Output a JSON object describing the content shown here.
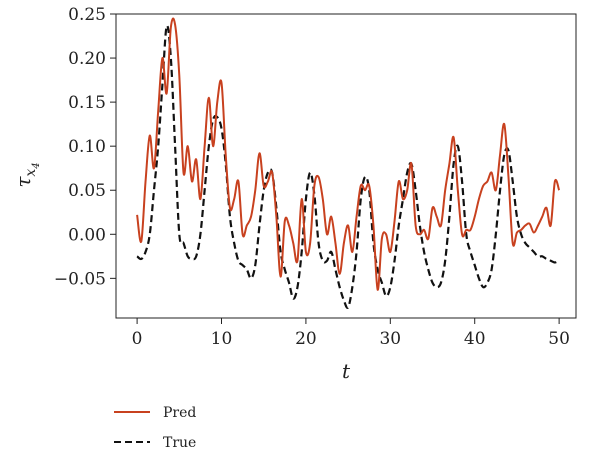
{
  "chart_data": {
    "type": "line",
    "xlabel": "t",
    "ylabel": "τ",
    "ylabel_subscript": "x",
    "ylabel_subsubscript": "4",
    "xlim": [
      -2.5,
      52
    ],
    "ylim": [
      -0.095,
      0.25
    ],
    "xticks": [
      0,
      10,
      20,
      30,
      40,
      50
    ],
    "yticks": [
      -0.05,
      0.0,
      0.05,
      0.1,
      0.15,
      0.2,
      0.25
    ],
    "ytick_labels": [
      "−0.05",
      "0.00",
      "0.05",
      "0.10",
      "0.15",
      "0.20",
      "0.25"
    ],
    "legend_position": "bottom-left, below plot",
    "series": [
      {
        "name": "Pred",
        "color": "#c8411f",
        "style": "solid",
        "x": [
          0,
          0.5,
          1,
          1.5,
          2,
          2.5,
          3,
          3.5,
          4,
          4.5,
          5,
          5.5,
          6,
          6.5,
          7,
          7.5,
          8,
          8.5,
          9,
          9.5,
          10,
          10.5,
          11,
          11.5,
          12,
          12.5,
          13,
          13.5,
          14,
          14.5,
          15,
          15.5,
          16,
          16.5,
          17,
          17.5,
          18,
          18.5,
          19,
          19.5,
          20,
          20.5,
          21,
          21.5,
          22,
          22.5,
          23,
          23.5,
          24,
          24.5,
          25,
          25.5,
          26,
          26.5,
          27,
          27.5,
          28,
          28.5,
          29,
          29.5,
          30,
          30.5,
          31,
          31.5,
          32,
          32.5,
          33,
          33.5,
          34,
          34.5,
          35,
          35.5,
          36,
          36.5,
          37,
          37.5,
          38,
          38.5,
          39,
          39.5,
          40,
          40.5,
          41,
          41.5,
          42,
          42.5,
          43,
          43.5,
          44,
          44.5,
          45,
          45.5,
          46,
          46.5,
          47,
          47.5,
          48,
          48.5,
          49,
          49.5,
          50
        ],
        "y": [
          0.022,
          -0.008,
          0.06,
          0.112,
          0.075,
          0.14,
          0.2,
          0.16,
          0.235,
          0.238,
          0.18,
          0.07,
          0.1,
          0.06,
          0.085,
          0.04,
          0.1,
          0.155,
          0.1,
          0.15,
          0.172,
          0.09,
          0.03,
          0.04,
          0.06,
          0.0,
          0.01,
          0.02,
          0.05,
          0.092,
          0.055,
          0.06,
          0.07,
          0.02,
          -0.048,
          0.015,
          0.01,
          -0.01,
          -0.03,
          0.04,
          -0.02,
          -0.01,
          0.055,
          0.065,
          0.04,
          0.0,
          0.02,
          -0.01,
          -0.045,
          -0.01,
          0.01,
          -0.02,
          0.02,
          0.055,
          0.05,
          0.055,
          0.01,
          -0.063,
          -0.005,
          0.0,
          -0.02,
          0.015,
          0.06,
          0.04,
          0.05,
          0.08,
          0.01,
          0.0,
          0.005,
          -0.005,
          0.03,
          0.02,
          0.01,
          0.05,
          0.08,
          0.11,
          0.05,
          0.0,
          0.005,
          0.005,
          0.02,
          0.04,
          0.055,
          0.06,
          0.07,
          0.05,
          0.09,
          0.125,
          0.065,
          -0.01,
          0.002,
          0.005,
          0.01,
          0.012,
          0.002,
          0.01,
          0.02,
          0.03,
          0.01,
          0.06,
          0.05
        ]
      },
      {
        "name": "True",
        "color": "#111111",
        "style": "dashed",
        "x": [
          0,
          0.5,
          1,
          1.5,
          2,
          2.5,
          3,
          3.5,
          4,
          4.5,
          5,
          5.5,
          6,
          6.5,
          7,
          7.5,
          8,
          8.5,
          9,
          9.5,
          10,
          10.5,
          11,
          11.5,
          12,
          12.5,
          13,
          13.5,
          14,
          14.5,
          15,
          15.5,
          16,
          16.5,
          17,
          17.5,
          18,
          18.5,
          19,
          19.5,
          20,
          20.5,
          21,
          21.5,
          22,
          22.5,
          23,
          23.5,
          24,
          24.5,
          25,
          25.5,
          26,
          26.5,
          27,
          27.5,
          28,
          28.5,
          29,
          29.5,
          30,
          30.5,
          31,
          31.5,
          32,
          32.5,
          33,
          33.5,
          34,
          34.5,
          35,
          35.5,
          36,
          36.5,
          37,
          37.5,
          38,
          38.5,
          39,
          39.5,
          40,
          40.5,
          41,
          41.5,
          42,
          42.5,
          43,
          43.5,
          44,
          44.5,
          45,
          45.5,
          46,
          46.5,
          47,
          47.5,
          48,
          48.5,
          49,
          49.5,
          50
        ],
        "y": [
          -0.025,
          -0.028,
          -0.02,
          0.0,
          0.05,
          0.1,
          0.17,
          0.236,
          0.2,
          0.1,
          0.0,
          -0.01,
          -0.025,
          -0.028,
          -0.025,
          0.0,
          0.05,
          0.1,
          0.13,
          0.133,
          0.12,
          0.08,
          0.02,
          -0.01,
          -0.03,
          -0.035,
          -0.04,
          -0.05,
          -0.035,
          0.01,
          0.05,
          0.07,
          0.07,
          0.03,
          -0.02,
          -0.04,
          -0.055,
          -0.073,
          -0.06,
          -0.02,
          0.04,
          0.07,
          0.045,
          -0.01,
          -0.03,
          -0.03,
          -0.02,
          -0.04,
          -0.06,
          -0.075,
          -0.083,
          -0.06,
          -0.02,
          0.04,
          0.065,
          0.05,
          -0.01,
          -0.04,
          -0.055,
          -0.07,
          -0.06,
          -0.03,
          0.01,
          0.04,
          0.07,
          0.08,
          0.05,
          0.01,
          -0.02,
          -0.04,
          -0.055,
          -0.06,
          -0.055,
          -0.03,
          0.02,
          0.08,
          0.1,
          0.06,
          0.0,
          -0.02,
          -0.035,
          -0.05,
          -0.06,
          -0.055,
          -0.04,
          0.0,
          0.05,
          0.09,
          0.095,
          0.06,
          0.02,
          0.0,
          -0.01,
          -0.015,
          -0.02,
          -0.025,
          -0.025,
          -0.028,
          -0.03,
          -0.032,
          -0.03
        ]
      }
    ]
  }
}
